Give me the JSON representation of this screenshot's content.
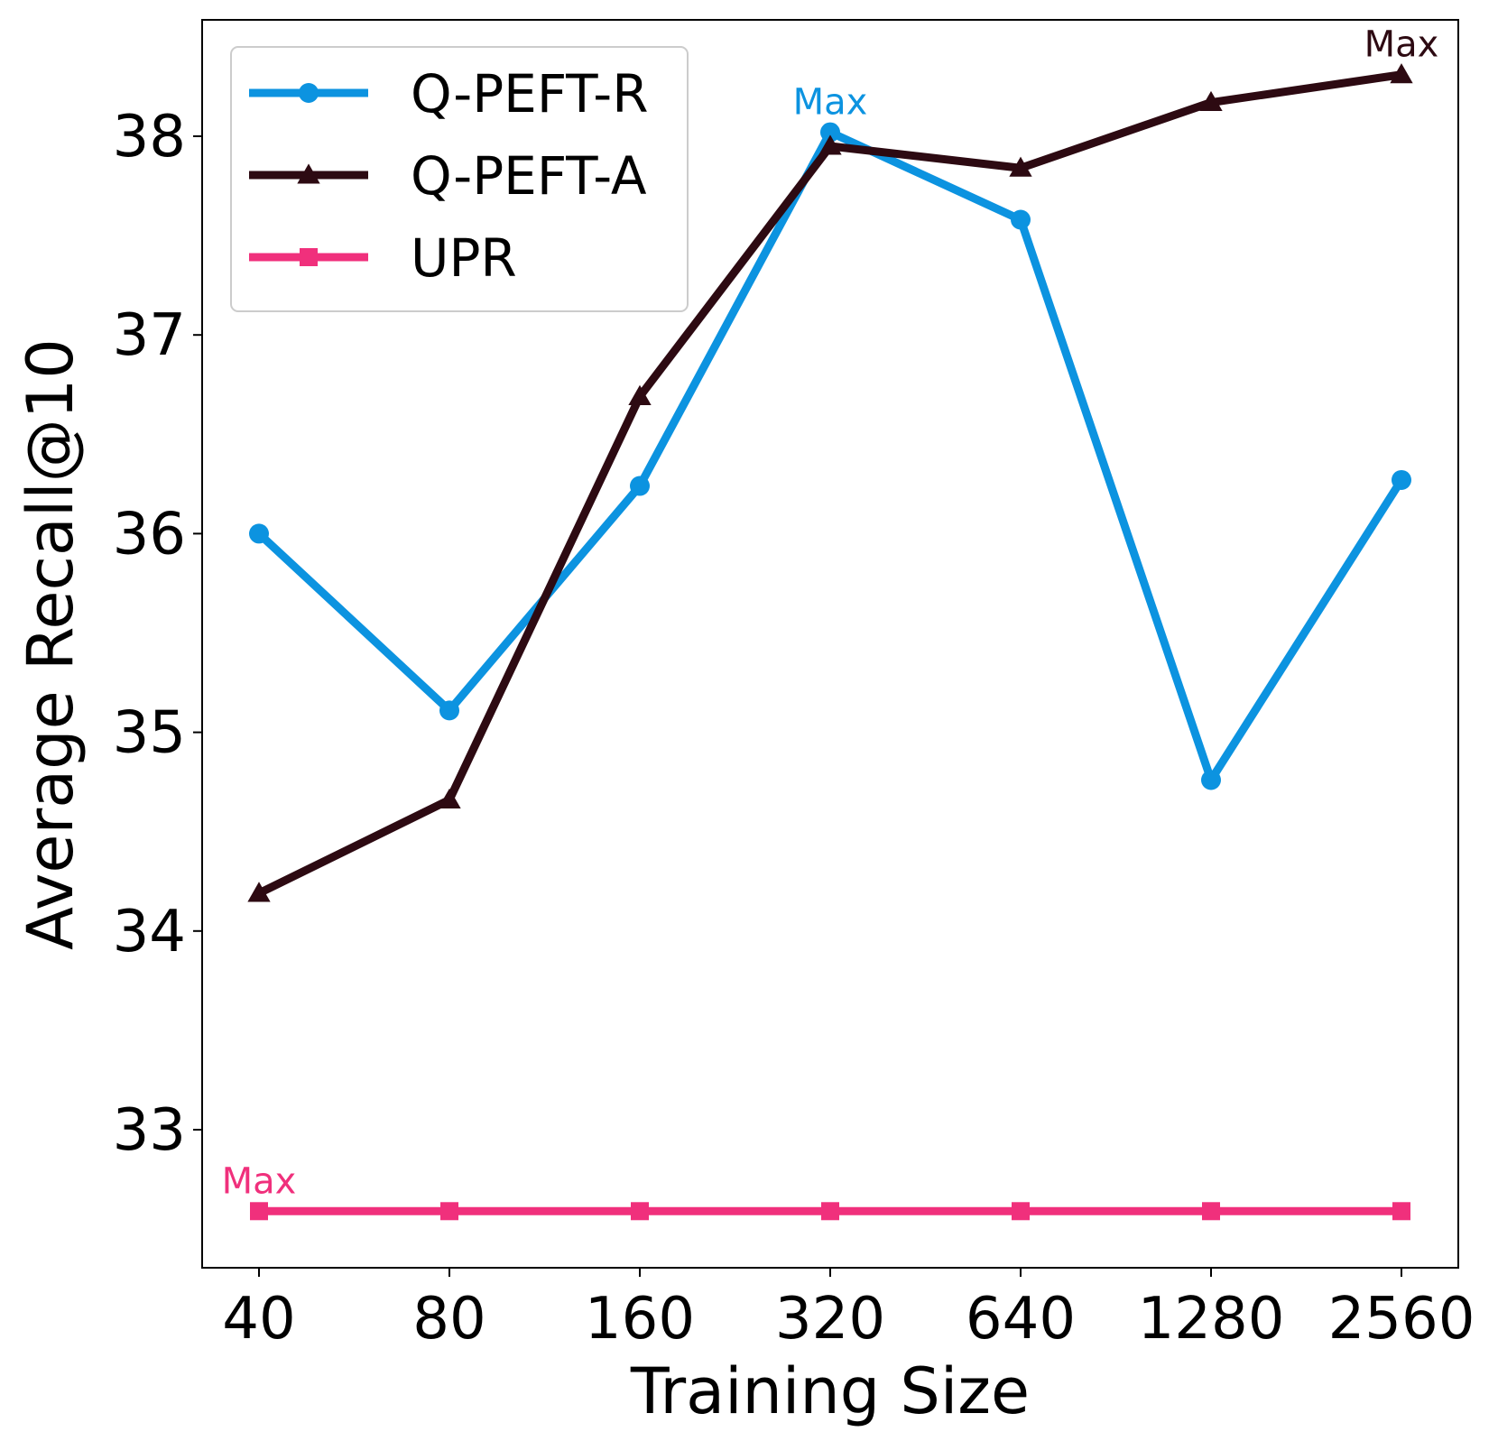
{
  "chart_data": {
    "type": "line",
    "xlabel": "Training Size",
    "ylabel": "Average Recall@10",
    "categories": [
      "40",
      "80",
      "160",
      "320",
      "640",
      "1280",
      "2560"
    ],
    "yticks": [
      "33",
      "34",
      "35",
      "36",
      "37",
      "38"
    ],
    "ylim": [
      32.3,
      38.6
    ],
    "grid": false,
    "legend_position": "upper-left",
    "series": [
      {
        "name": "Q-PEFT-R",
        "color": "#0c93e0",
        "marker": "circle",
        "values": [
          36.0,
          35.11,
          36.24,
          38.02,
          37.58,
          34.76,
          36.27
        ],
        "annotation": "Max",
        "annotation_index": 3
      },
      {
        "name": "Q-PEFT-A",
        "color": "#2d0a12",
        "marker": "triangle",
        "values": [
          34.19,
          34.66,
          36.69,
          37.95,
          37.84,
          38.17,
          38.31
        ],
        "annotation": "Max",
        "annotation_index": 6
      },
      {
        "name": "UPR",
        "color": "#f0307c",
        "marker": "square",
        "values": [
          32.59,
          32.59,
          32.59,
          32.59,
          32.59,
          32.59,
          32.59
        ],
        "annotation": "Max",
        "annotation_index": 0
      }
    ]
  }
}
